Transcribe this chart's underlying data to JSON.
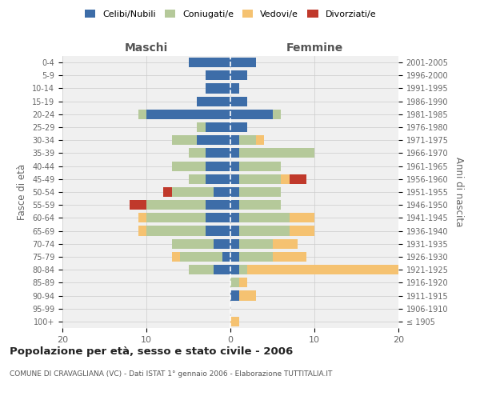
{
  "age_groups": [
    "100+",
    "95-99",
    "90-94",
    "85-89",
    "80-84",
    "75-79",
    "70-74",
    "65-69",
    "60-64",
    "55-59",
    "50-54",
    "45-49",
    "40-44",
    "35-39",
    "30-34",
    "25-29",
    "20-24",
    "15-19",
    "10-14",
    "5-9",
    "0-4"
  ],
  "birth_years": [
    "≤ 1905",
    "1906-1910",
    "1911-1915",
    "1916-1920",
    "1921-1925",
    "1926-1930",
    "1931-1935",
    "1936-1940",
    "1941-1945",
    "1946-1950",
    "1951-1955",
    "1956-1960",
    "1961-1965",
    "1966-1970",
    "1971-1975",
    "1976-1980",
    "1981-1985",
    "1986-1990",
    "1991-1995",
    "1996-2000",
    "2001-2005"
  ],
  "maschi": {
    "celibi": [
      0,
      0,
      0,
      0,
      2,
      1,
      2,
      3,
      3,
      3,
      2,
      3,
      3,
      3,
      4,
      3,
      10,
      4,
      3,
      3,
      5
    ],
    "coniugati": [
      0,
      0,
      0,
      0,
      3,
      5,
      5,
      7,
      7,
      7,
      5,
      2,
      4,
      2,
      3,
      1,
      1,
      0,
      0,
      0,
      0
    ],
    "vedovi": [
      0,
      0,
      0,
      0,
      0,
      1,
      0,
      1,
      1,
      0,
      0,
      0,
      0,
      0,
      0,
      0,
      0,
      0,
      0,
      0,
      0
    ],
    "divorziati": [
      0,
      0,
      0,
      0,
      0,
      0,
      0,
      0,
      0,
      2,
      1,
      0,
      0,
      0,
      0,
      0,
      0,
      0,
      0,
      0,
      0
    ]
  },
  "femmine": {
    "nubili": [
      0,
      0,
      1,
      0,
      1,
      1,
      1,
      1,
      1,
      1,
      1,
      1,
      1,
      1,
      1,
      2,
      5,
      2,
      1,
      2,
      3
    ],
    "coniugate": [
      0,
      0,
      0,
      1,
      1,
      4,
      4,
      6,
      6,
      5,
      5,
      5,
      5,
      9,
      2,
      0,
      1,
      0,
      0,
      0,
      0
    ],
    "vedove": [
      1,
      0,
      2,
      1,
      18,
      4,
      3,
      3,
      3,
      0,
      0,
      1,
      0,
      0,
      1,
      0,
      0,
      0,
      0,
      0,
      0
    ],
    "divorziate": [
      0,
      0,
      0,
      0,
      0,
      0,
      0,
      0,
      0,
      0,
      0,
      2,
      0,
      0,
      0,
      0,
      0,
      0,
      0,
      0,
      0
    ]
  },
  "colors": {
    "celibi_nubili": "#3d6da8",
    "coniugati": "#b5c99a",
    "vedovi": "#f5c271",
    "divorziati": "#c0392b"
  },
  "xlim": [
    -20,
    20
  ],
  "xticks": [
    -20,
    -10,
    0,
    10,
    20
  ],
  "xticklabels": [
    "20",
    "10",
    "0",
    "10",
    "20"
  ],
  "title": "Popolazione per età, sesso e stato civile - 2006",
  "subtitle": "COMUNE DI CRAVAGLIANA (VC) - Dati ISTAT 1° gennaio 2006 - Elaborazione TUTTITALIA.IT",
  "ylabel_left": "Fasce di età",
  "ylabel_right": "Anni di nascita",
  "maschi_label": "Maschi",
  "femmine_label": "Femmine",
  "legend_labels": [
    "Celibi/Nubili",
    "Coniugati/e",
    "Vedovi/e",
    "Divorziati/e"
  ],
  "bg_color": "#ffffff",
  "plot_bg_color": "#f0f0f0"
}
